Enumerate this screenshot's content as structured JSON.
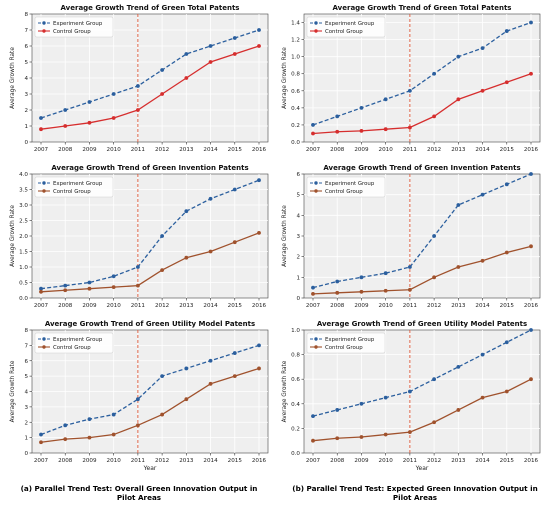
{
  "chart_data": [
    {
      "type": "line",
      "title": "Average Growth Trend of Green Total Patents",
      "xlabel": "",
      "ylabel": "Average Growth Rate",
      "x": [
        2007,
        2008,
        2009,
        2010,
        2011,
        2012,
        2013,
        2014,
        2015,
        2016
      ],
      "ylim": [
        0,
        8
      ],
      "yticks": [
        0,
        1,
        2,
        3,
        4,
        5,
        6,
        7,
        8
      ],
      "yticklabels": [
        "0",
        "1",
        "2",
        "3",
        "4",
        "5",
        "6",
        "7",
        "8"
      ],
      "vline": 2011,
      "legend": "top-left",
      "grid": true,
      "series": [
        {
          "name": "Experiment Group",
          "values": [
            1.5,
            2.0,
            2.5,
            3.0,
            3.5,
            4.5,
            5.5,
            6.0,
            6.5,
            7.0
          ]
        },
        {
          "name": "Control Group",
          "values": [
            0.8,
            1.0,
            1.2,
            1.5,
            2.0,
            3.0,
            4.0,
            5.0,
            5.5,
            6.0
          ]
        }
      ]
    },
    {
      "type": "line",
      "title": "Average Growth Trend of Green Total Patents",
      "xlabel": "",
      "ylabel": "Average Growth Rate",
      "x": [
        2007,
        2008,
        2009,
        2010,
        2011,
        2012,
        2013,
        2014,
        2015,
        2016
      ],
      "ylim": [
        0,
        1.5
      ],
      "yticks": [
        0,
        0.2,
        0.4,
        0.6,
        0.8,
        1.0,
        1.2,
        1.4
      ],
      "yticklabels": [
        "0.0",
        "0.2",
        "0.4",
        "0.6",
        "0.8",
        "1.0",
        "1.2",
        "1.4"
      ],
      "vline": 2011,
      "legend": "top-left",
      "grid": true,
      "series": [
        {
          "name": "Experiment Group",
          "values": [
            0.2,
            0.3,
            0.4,
            0.5,
            0.6,
            0.8,
            1.0,
            1.1,
            1.3,
            1.4
          ]
        },
        {
          "name": "Control Group",
          "values": [
            0.1,
            0.12,
            0.13,
            0.15,
            0.17,
            0.3,
            0.5,
            0.6,
            0.7,
            0.8
          ]
        }
      ]
    },
    {
      "type": "line",
      "title": "Average Growth Trend of Green Invention Patents",
      "xlabel": "",
      "ylabel": "Average Growth Rate",
      "x": [
        2007,
        2008,
        2009,
        2010,
        2011,
        2012,
        2013,
        2014,
        2015,
        2016
      ],
      "ylim": [
        0,
        4
      ],
      "yticks": [
        0,
        0.5,
        1.0,
        1.5,
        2.0,
        2.5,
        3.0,
        3.5,
        4.0
      ],
      "yticklabels": [
        "0.0",
        "0.5",
        "1.0",
        "1.5",
        "2.0",
        "2.5",
        "3.0",
        "3.5",
        "4.0"
      ],
      "vline": 2011,
      "legend": "top-left",
      "grid": true,
      "series": [
        {
          "name": "Experiment Group",
          "values": [
            0.3,
            0.4,
            0.5,
            0.7,
            1.0,
            2.0,
            2.8,
            3.2,
            3.5,
            3.8
          ]
        },
        {
          "name": "Control Group",
          "values": [
            0.2,
            0.25,
            0.3,
            0.35,
            0.4,
            0.9,
            1.3,
            1.5,
            1.8,
            2.1
          ]
        }
      ]
    },
    {
      "type": "line",
      "title": "Average Growth Trend of Green Invention Patents",
      "xlabel": "",
      "ylabel": "Average Growth Rate",
      "x": [
        2007,
        2008,
        2009,
        2010,
        2011,
        2012,
        2013,
        2014,
        2015,
        2016
      ],
      "ylim": [
        0,
        6
      ],
      "yticks": [
        0,
        1,
        2,
        3,
        4,
        5,
        6
      ],
      "yticklabels": [
        "0",
        "1",
        "2",
        "3",
        "4",
        "5",
        "6"
      ],
      "vline": 2011,
      "legend": "top-left",
      "grid": true,
      "series": [
        {
          "name": "Experiment Group",
          "values": [
            0.5,
            0.8,
            1.0,
            1.2,
            1.5,
            3.0,
            4.5,
            5.0,
            5.5,
            6.0
          ]
        },
        {
          "name": "Control Group",
          "values": [
            0.2,
            0.25,
            0.3,
            0.35,
            0.4,
            1.0,
            1.5,
            1.8,
            2.2,
            2.5
          ]
        }
      ]
    },
    {
      "type": "line",
      "title": "Average Growth Trend of Green Utility Model Patents",
      "xlabel": "Year",
      "ylabel": "Average Growth Rate",
      "x": [
        2007,
        2008,
        2009,
        2010,
        2011,
        2012,
        2013,
        2014,
        2015,
        2016
      ],
      "ylim": [
        0,
        8
      ],
      "yticks": [
        0,
        1,
        2,
        3,
        4,
        5,
        6,
        7,
        8
      ],
      "yticklabels": [
        "0",
        "1",
        "2",
        "3",
        "4",
        "5",
        "6",
        "7",
        "8"
      ],
      "vline": 2011,
      "legend": "top-left",
      "grid": true,
      "series": [
        {
          "name": "Experiment Group",
          "values": [
            1.2,
            1.8,
            2.2,
            2.5,
            3.5,
            5.0,
            5.5,
            6.0,
            6.5,
            7.0
          ]
        },
        {
          "name": "Control Group",
          "values": [
            0.7,
            0.9,
            1.0,
            1.2,
            1.8,
            2.5,
            3.5,
            4.5,
            5.0,
            5.5
          ]
        }
      ]
    },
    {
      "type": "line",
      "title": "Average Growth Trend of Green Utility Model Patents",
      "xlabel": "Year",
      "ylabel": "Average Growth Rate",
      "x": [
        2007,
        2008,
        2009,
        2010,
        2011,
        2012,
        2013,
        2014,
        2015,
        2016
      ],
      "ylim": [
        0,
        1.0
      ],
      "yticks": [
        0,
        0.2,
        0.4,
        0.6,
        0.8,
        1.0
      ],
      "yticklabels": [
        "0.0",
        "0.2",
        "0.4",
        "0.6",
        "0.8",
        "1.0"
      ],
      "vline": 2011,
      "legend": "top-left",
      "grid": true,
      "series": [
        {
          "name": "Experiment Group",
          "values": [
            0.3,
            0.35,
            0.4,
            0.45,
            0.5,
            0.6,
            0.7,
            0.8,
            0.9,
            1.0
          ]
        },
        {
          "name": "Control Group",
          "values": [
            0.1,
            0.12,
            0.13,
            0.15,
            0.17,
            0.25,
            0.35,
            0.45,
            0.5,
            0.6
          ]
        }
      ]
    }
  ],
  "colors": {
    "experiment": "#2b5f9e",
    "control_red": "#d62e2e",
    "control_brown": "#a0522d",
    "vline": "#e05a3a",
    "plot_bg": "#efefef",
    "grid": "#ffffff"
  },
  "control_colors": [
    "control_red",
    "control_red",
    "control_brown",
    "control_brown",
    "control_brown",
    "control_brown"
  ],
  "captions": {
    "a": "(a) Parallel Trend Test: Overall Green Innovation Output in Pilot Areas",
    "b": "(b) Parallel Trend Test: Expected Green Innovation Output in Pilot Areas"
  }
}
